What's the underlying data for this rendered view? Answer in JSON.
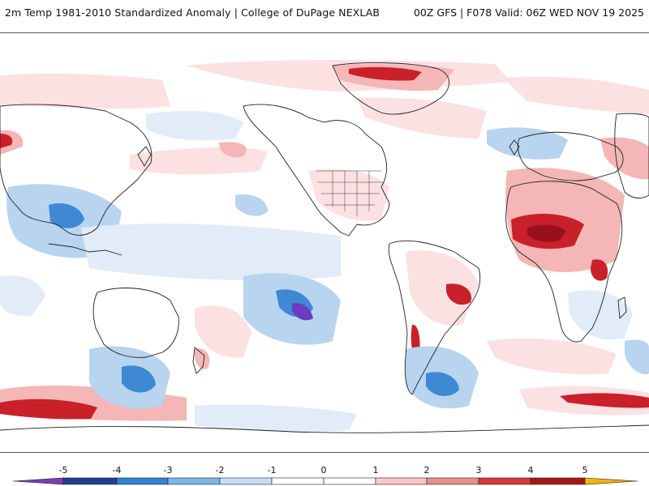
{
  "header": {
    "title": "2m Temp 1981-2010 Standardized Anomaly | College of DuPage NEXLAB",
    "run_info": "00Z GFS | F078 Valid: 06Z WED NOV 19 2025"
  },
  "legend": {
    "ticks": [
      "-5",
      "-4",
      "-3",
      "-2",
      "-1",
      "0",
      "1",
      "2",
      "3",
      "4",
      "5"
    ],
    "colors": [
      "#7b3fb5",
      "#1f3f8f",
      "#2e84d6",
      "#7eb6e8",
      "#c9dcf3",
      "#ffffff",
      "#ffffff",
      "#f6c9c9",
      "#e88f8f",
      "#d43a3a",
      "#a81616",
      "#f2b705"
    ]
  },
  "map": {
    "projection": "global-pacific-centered",
    "warm_colors": [
      "#fbe1e1",
      "#f4b6b6",
      "#e47474",
      "#c9202a",
      "#98101a"
    ],
    "cool_colors": [
      "#e1ecf8",
      "#b8d4ef",
      "#7fb3e3",
      "#3f88d4",
      "#6b3cbf"
    ]
  }
}
